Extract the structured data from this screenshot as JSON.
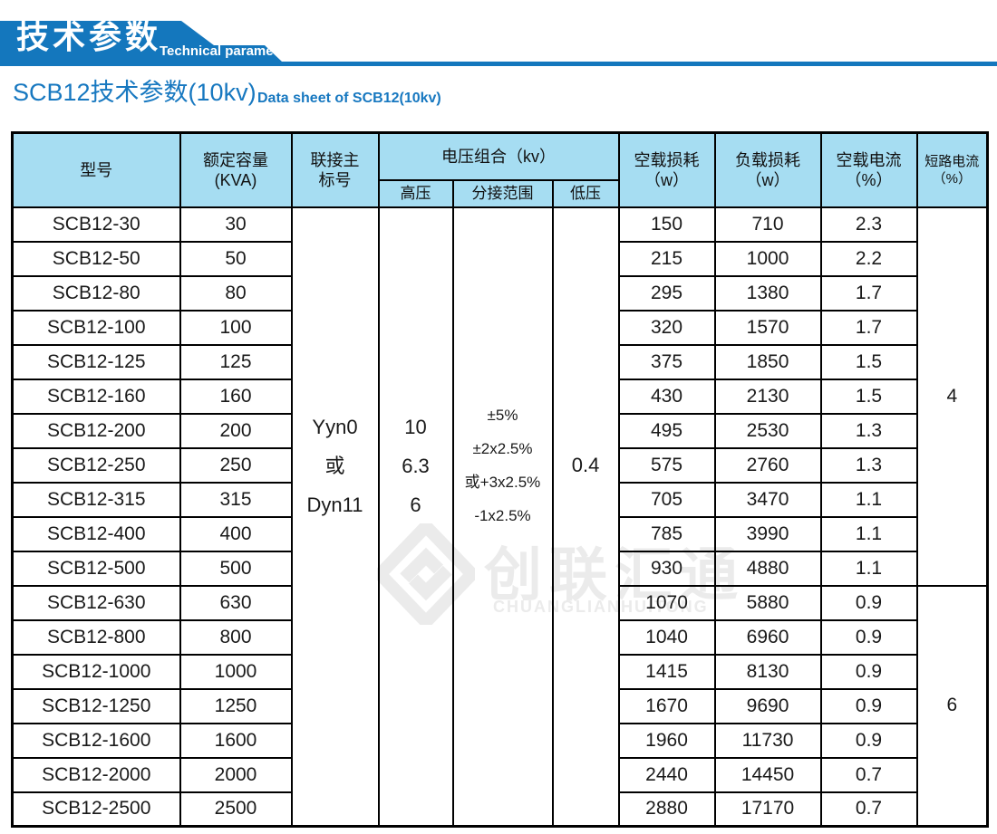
{
  "colors": {
    "banner_blue": "#1477bd",
    "header_fill": "#a6ddf2",
    "title_blue": "#1778c0",
    "border_black": "#000000",
    "watermark_gray": "#ebebeb"
  },
  "banner": {
    "title_zh": "技术参数",
    "title_en": "Technical parameter"
  },
  "page_title": {
    "zh": "SCB12技术参数(10kv)",
    "en": "Data sheet of SCB12(10kv)"
  },
  "watermark": {
    "icon": "diamond-logo",
    "zh": "创联汇通",
    "en": "CHUANGLIANHUITONG"
  },
  "table": {
    "headers": {
      "model": "型号",
      "capacity_line1": "额定容量",
      "capacity_line2": "(KVA)",
      "vector_line1": "联接主",
      "vector_line2": "标号",
      "voltage_group": "电压组合（kv）",
      "hv": "高压",
      "tap": "分接范围",
      "lv": "低压",
      "no_load_loss_line1": "空载损耗",
      "no_load_loss_line2": "（w）",
      "load_loss_line1": "负载损耗",
      "load_loss_line2": "（w）",
      "no_load_current_line1": "空载电流",
      "no_load_current_line2": "（%）",
      "short_circuit_line1": "短路电流",
      "short_circuit_line2": "（%）"
    },
    "merged": {
      "vector": [
        "Yyn0",
        "或",
        "Dyn11"
      ],
      "hv": [
        "10",
        "6.3",
        "6"
      ],
      "tap": [
        "±5%",
        "±2x2.5%",
        "或+3x2.5%",
        "-1x2.5%"
      ],
      "lv": "0.4",
      "short_circuit_groups": [
        {
          "value": "4",
          "rows": 11
        },
        {
          "value": "6",
          "rows": 7
        }
      ]
    },
    "rows": [
      {
        "model": "SCB12-30",
        "kva": "30",
        "no_load_loss": "150",
        "load_loss": "710",
        "no_load_current": "2.3"
      },
      {
        "model": "SCB12-50",
        "kva": "50",
        "no_load_loss": "215",
        "load_loss": "1000",
        "no_load_current": "2.2"
      },
      {
        "model": "SCB12-80",
        "kva": "80",
        "no_load_loss": "295",
        "load_loss": "1380",
        "no_load_current": "1.7"
      },
      {
        "model": "SCB12-100",
        "kva": "100",
        "no_load_loss": "320",
        "load_loss": "1570",
        "no_load_current": "1.7"
      },
      {
        "model": "SCB12-125",
        "kva": "125",
        "no_load_loss": "375",
        "load_loss": "1850",
        "no_load_current": "1.5"
      },
      {
        "model": "SCB12-160",
        "kva": "160",
        "no_load_loss": "430",
        "load_loss": "2130",
        "no_load_current": "1.5"
      },
      {
        "model": "SCB12-200",
        "kva": "200",
        "no_load_loss": "495",
        "load_loss": "2530",
        "no_load_current": "1.3"
      },
      {
        "model": "SCB12-250",
        "kva": "250",
        "no_load_loss": "575",
        "load_loss": "2760",
        "no_load_current": "1.3"
      },
      {
        "model": "SCB12-315",
        "kva": "315",
        "no_load_loss": "705",
        "load_loss": "3470",
        "no_load_current": "1.1"
      },
      {
        "model": "SCB12-400",
        "kva": "400",
        "no_load_loss": "785",
        "load_loss": "3990",
        "no_load_current": "1.1"
      },
      {
        "model": "SCB12-500",
        "kva": "500",
        "no_load_loss": "930",
        "load_loss": "4880",
        "no_load_current": "1.1"
      },
      {
        "model": "SCB12-630",
        "kva": "630",
        "no_load_loss": "1070",
        "load_loss": "5880",
        "no_load_current": "0.9"
      },
      {
        "model": "SCB12-800",
        "kva": "800",
        "no_load_loss": "1040",
        "load_loss": "6960",
        "no_load_current": "0.9"
      },
      {
        "model": "SCB12-1000",
        "kva": "1000",
        "no_load_loss": "1415",
        "load_loss": "8130",
        "no_load_current": "0.9"
      },
      {
        "model": "SCB12-1250",
        "kva": "1250",
        "no_load_loss": "1670",
        "load_loss": "9690",
        "no_load_current": "0.9"
      },
      {
        "model": "SCB12-1600",
        "kva": "1600",
        "no_load_loss": "1960",
        "load_loss": "11730",
        "no_load_current": "0.9"
      },
      {
        "model": "SCB12-2000",
        "kva": "2000",
        "no_load_loss": "2440",
        "load_loss": "14450",
        "no_load_current": "0.7"
      },
      {
        "model": "SCB12-2500",
        "kva": "2500",
        "no_load_loss": "2880",
        "load_loss": "17170",
        "no_load_current": "0.7"
      }
    ]
  }
}
